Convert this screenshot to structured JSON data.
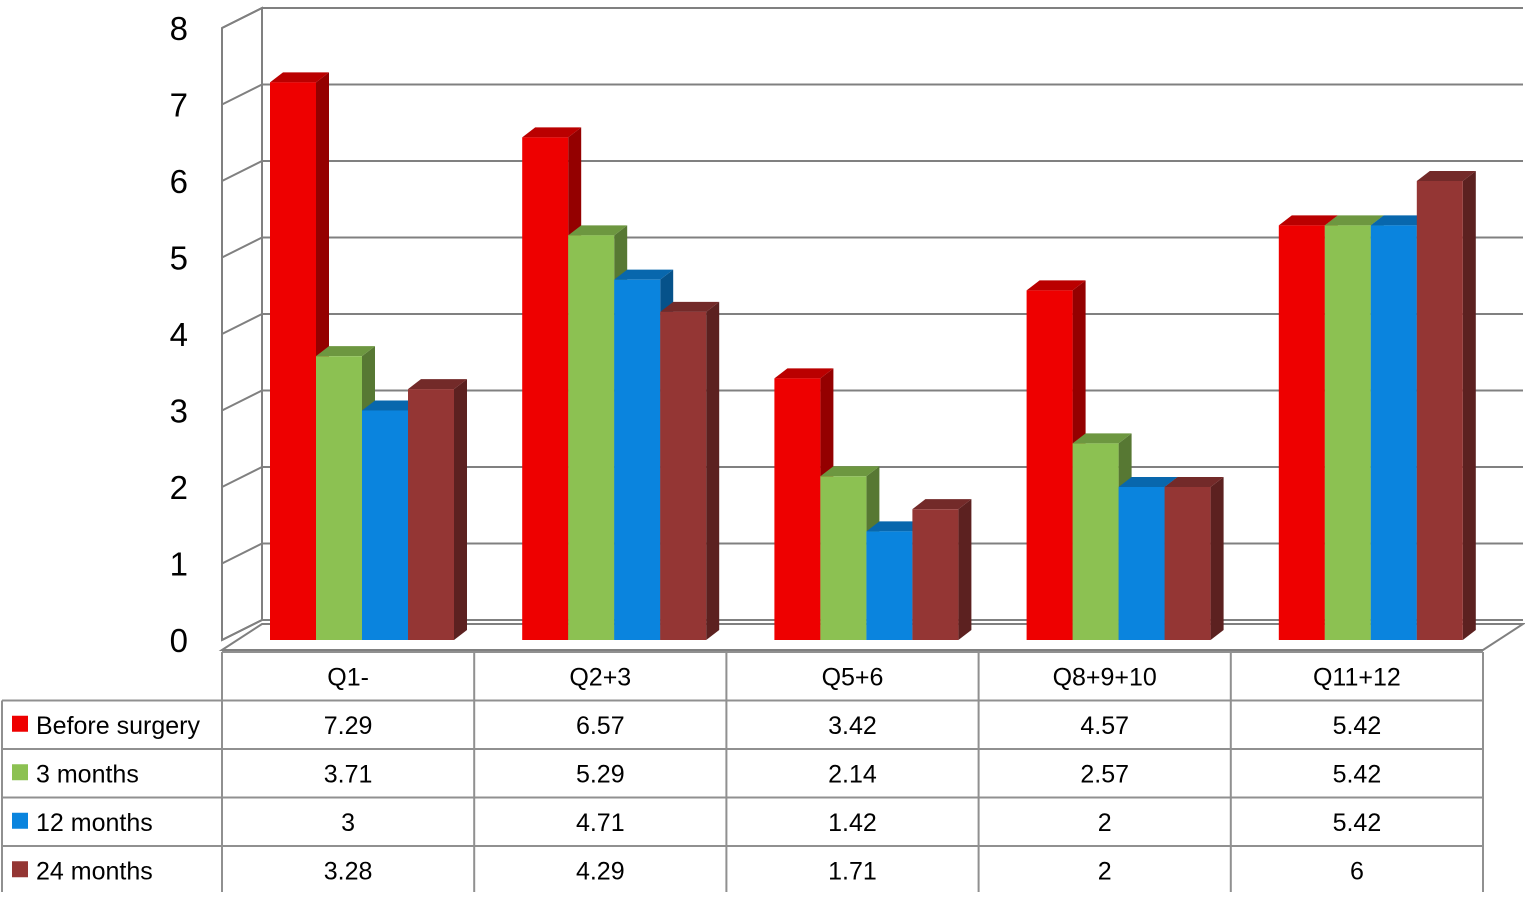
{
  "chart_data": {
    "type": "bar",
    "title": "",
    "xlabel": "",
    "ylabel": "",
    "ylim": [
      0,
      8
    ],
    "y_ticks": [
      "0",
      "1",
      "2",
      "3",
      "4",
      "5",
      "6",
      "7",
      "8"
    ],
    "grid": true,
    "legend": "table-left",
    "categories": [
      "Q1-",
      "Q2+3",
      "Q5+6",
      "Q8+9+10",
      "Q11+12"
    ],
    "series": [
      {
        "name": "Before surgery",
        "color": "#EE0000",
        "values": [
          7.29,
          6.57,
          3.42,
          4.57,
          5.42
        ],
        "labels": [
          "7.29",
          "6.57",
          "3.42",
          "4.57",
          "5.42"
        ]
      },
      {
        "name": "3 months",
        "color": "#8CC152",
        "values": [
          3.71,
          5.29,
          2.14,
          2.57,
          5.42
        ],
        "labels": [
          "3.71",
          "5.29",
          "2.14",
          "2.57",
          "5.42"
        ]
      },
      {
        "name": "12 months",
        "color": "#0A84DE",
        "values": [
          3,
          4.71,
          1.42,
          2,
          5.42
        ],
        "labels": [
          "3",
          "4.71",
          "1.42",
          "2",
          "5.42"
        ]
      },
      {
        "name": "24 months",
        "color": "#943634",
        "values": [
          3.28,
          4.29,
          1.71,
          2,
          6
        ],
        "labels": [
          "3.28",
          "4.29",
          "1.71",
          "2",
          "6"
        ]
      }
    ]
  }
}
